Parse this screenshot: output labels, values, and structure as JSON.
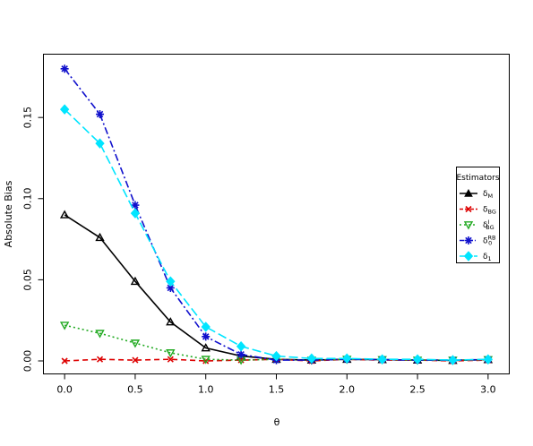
{
  "chart_data": {
    "type": "line",
    "xlabel": "θ",
    "ylabel": "Absolute Bias",
    "xlim": [
      -0.15,
      3.15
    ],
    "ylim": [
      -0.008,
      0.189
    ],
    "xticks": [
      0.0,
      0.5,
      1.0,
      1.5,
      2.0,
      2.5,
      3.0
    ],
    "xtick_labels": [
      "0.0",
      "0.5",
      "1.0",
      "1.5",
      "2.0",
      "2.5",
      "3.0"
    ],
    "yticks": [
      0.0,
      0.05,
      0.1,
      0.15
    ],
    "ytick_labels": [
      "0.00",
      "0.05",
      "0.10",
      "0.15"
    ],
    "x": [
      0.0,
      0.25,
      0.5,
      0.75,
      1.0,
      1.25,
      1.5,
      1.75,
      2.0,
      2.25,
      2.5,
      2.75,
      3.0
    ],
    "legend": {
      "title": "Estimators",
      "position": "right"
    },
    "series": [
      {
        "base": "δ",
        "sub": "M",
        "sup": "",
        "color": "#000000",
        "dash": "",
        "marker": "triangle-open",
        "legend_marker": "triangle-filled",
        "values": [
          0.09,
          0.076,
          0.049,
          0.024,
          0.008,
          0.003,
          0.001,
          0.0005,
          0.001,
          0.0008,
          0.0005,
          0.0003,
          0.0008
        ]
      },
      {
        "base": "δ",
        "sub": "BG",
        "sup": "",
        "color": "#dd0000",
        "dash": "6,4",
        "marker": "x",
        "values": [
          0.0,
          0.001,
          0.0005,
          0.001,
          0.0,
          0.0005,
          0.001,
          0.0,
          0.001,
          0.0005,
          0.0005,
          0.0,
          0.0005
        ]
      },
      {
        "base": "δ",
        "sub": "BG",
        "sup": "I",
        "color": "#22aa22",
        "dash": "2,3",
        "marker": "triangle-down-open",
        "values": [
          0.022,
          0.017,
          0.011,
          0.005,
          0.001,
          0.0005,
          0.001,
          0.0005,
          0.001,
          0.0008,
          0.0005,
          0.0005,
          0.0008
        ]
      },
      {
        "base": "δ",
        "sub": "0",
        "sup": "RB",
        "color": "#1010cc",
        "dash": "8,3,2,3",
        "marker": "asterisk",
        "values": [
          0.18,
          0.152,
          0.096,
          0.045,
          0.015,
          0.004,
          0.0005,
          0.0005,
          0.001,
          0.0008,
          0.0005,
          0.0005,
          0.0008
        ]
      },
      {
        "base": "δ",
        "sub": "1",
        "sup": "",
        "color": "#00e5ff",
        "dash": "10,4",
        "marker": "diamond-filled",
        "values": [
          0.155,
          0.134,
          0.091,
          0.049,
          0.021,
          0.009,
          0.003,
          0.0015,
          0.0015,
          0.001,
          0.001,
          0.0005,
          0.001
        ]
      }
    ]
  }
}
